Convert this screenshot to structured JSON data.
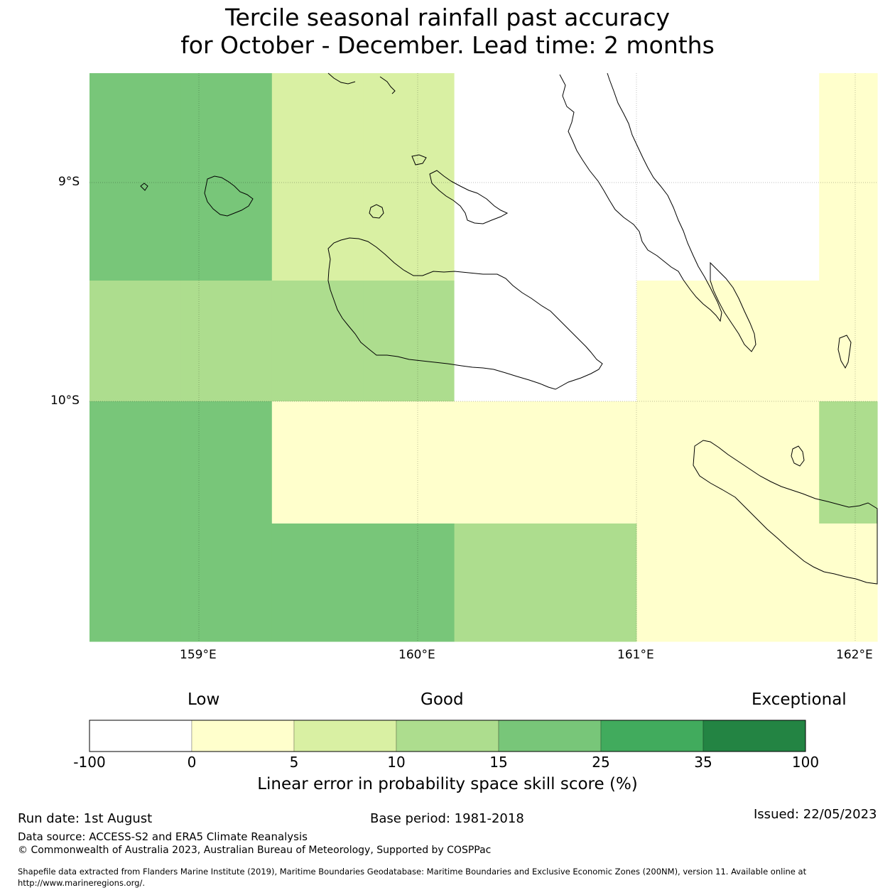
{
  "title": {
    "line1": "Tercile seasonal rainfall past accuracy",
    "line2": "for October - December. Lead time: 2 months"
  },
  "map": {
    "lat_labels": [
      "9°S",
      "10°S"
    ],
    "lon_labels": [
      "159°E",
      "160°E",
      "161°E",
      "162°E"
    ],
    "grid_values": [
      [
        15,
        15,
        5,
        5,
        -5,
        -5,
        -5,
        -5,
        0
      ],
      [
        10,
        10,
        10,
        10,
        -5,
        -5,
        0,
        0,
        0
      ],
      [
        15,
        15,
        0,
        0,
        0,
        0,
        0,
        0,
        10
      ],
      [
        15,
        15,
        15,
        15,
        10,
        10,
        0,
        0,
        0
      ]
    ]
  },
  "colorbar": {
    "category_labels": [
      "Low",
      "Good",
      "Exceptional"
    ],
    "ticks": [
      "-100",
      "0",
      "5",
      "10",
      "15",
      "25",
      "35",
      "100"
    ],
    "colors": [
      "#ffffff",
      "#ffffcc",
      "#d9f0a3",
      "#addd8e",
      "#78c679",
      "#41ab5d",
      "#238443"
    ],
    "label": "Linear error in probability space skill score (%)"
  },
  "footer": {
    "run_date": "Run date: 1st August",
    "base_period": "Base period: 1981-2018",
    "issued": "Issued: 22/05/2023",
    "data_source": "Data source: ACCESS-S2 and ERA5 Climate Reanalysis",
    "copyright": "© Commonwealth of Australia 2023, Australian Bureau of Meteorology, Supported by COSPPac",
    "shapefile_line1": "Shapefile data extracted from Flanders Marine Institute (2019), Maritime Boundaries Geodatabase: Maritime Boundaries and Exclusive Economic Zones (200NM), version 11. Available online at",
    "shapefile_line2": "http://www.marineregions.org/."
  }
}
